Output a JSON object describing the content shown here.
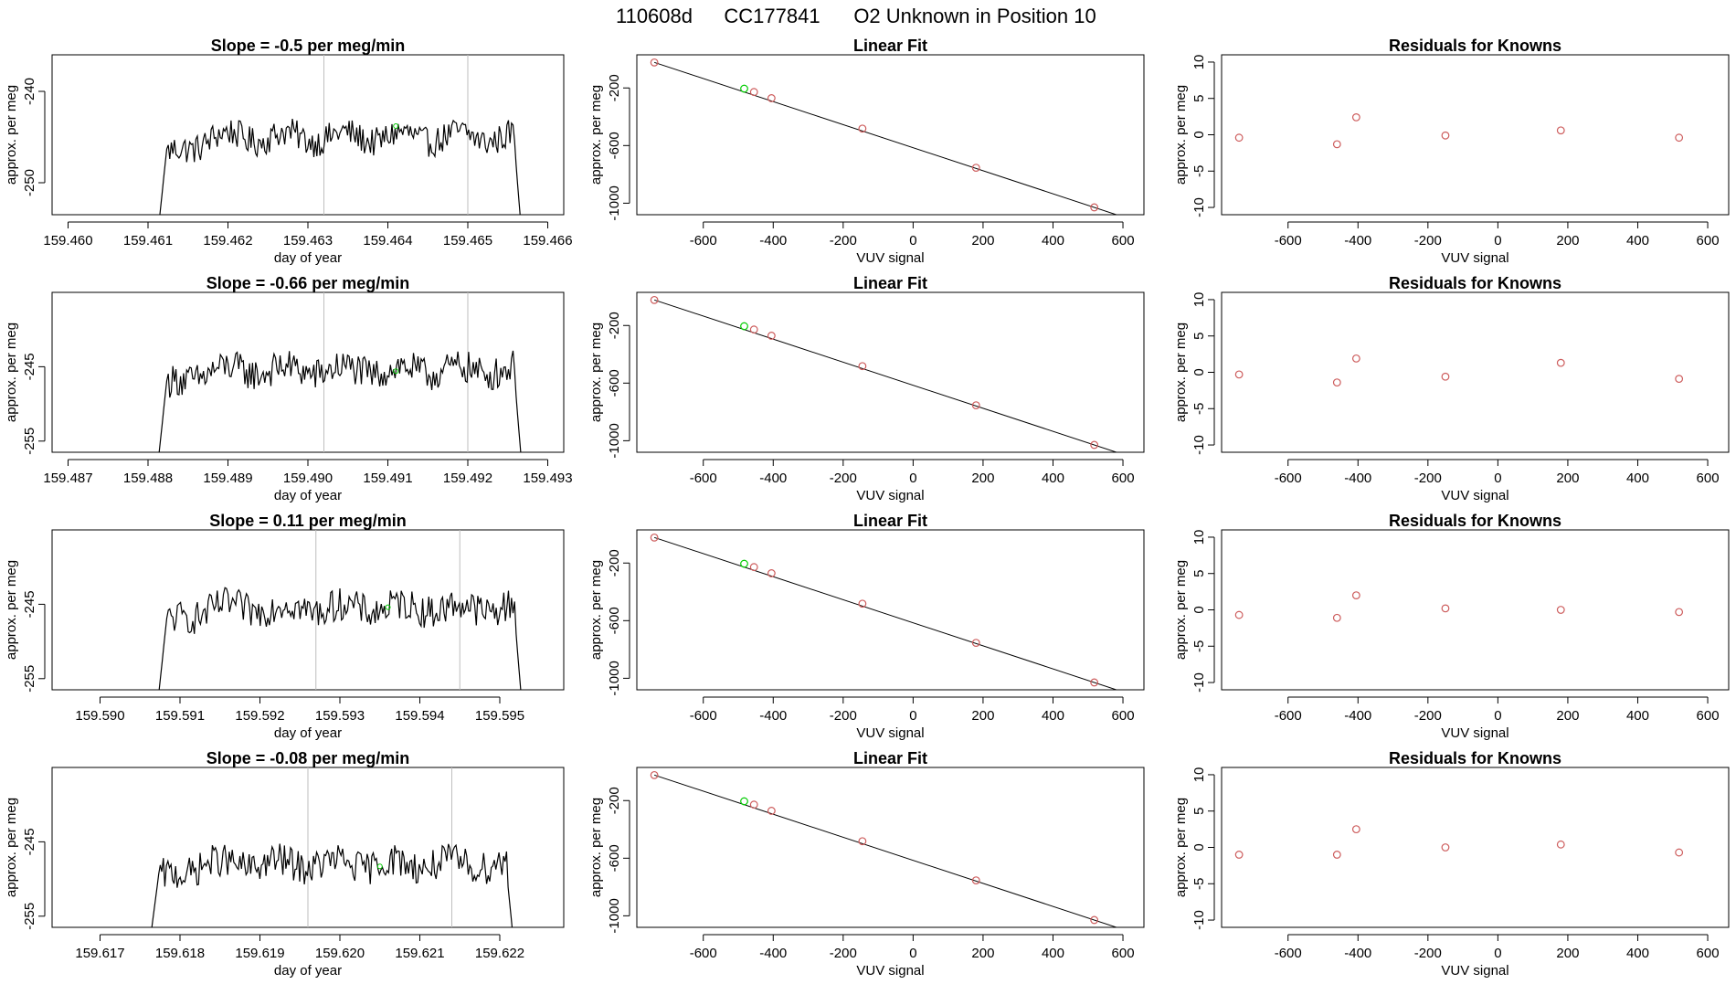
{
  "figure": {
    "title_parts": [
      "110608d",
      "CC177841",
      "O2 Unknown in Position  10"
    ]
  },
  "colors": {
    "line": "#000000",
    "vline": "#bebebe",
    "known_point": "#cd5c5c",
    "unknown_point": "#00cc00"
  },
  "chart_data": [
    {
      "type": "line",
      "row": 0,
      "col": 0,
      "title": "Slope =  -0.5  per meg/min",
      "xlabel": "day of year",
      "ylabel": "approx. per meg",
      "xlim": [
        159.4598,
        159.4662
      ],
      "ylim": [
        -253.5,
        -236
      ],
      "xticks": [
        159.46,
        159.461,
        159.462,
        159.463,
        159.464,
        159.465,
        159.466
      ],
      "xdecimals": 3,
      "yticks": [
        -240,
        -250
      ],
      "x_start": 159.4611,
      "x_end": 159.4657,
      "base": -245,
      "noise": 1.6,
      "vlines": [
        159.4632,
        159.465
      ],
      "unknown_point": {
        "x": 159.4641,
        "y": -243.8
      }
    },
    {
      "type": "line",
      "row": 1,
      "col": 0,
      "title": "Slope =  -0.66  per meg/min",
      "xlabel": "day of year",
      "ylabel": "approx. per meg",
      "xlim": [
        159.4868,
        159.4932
      ],
      "ylim": [
        -256.5,
        -235
      ],
      "xticks": [
        159.487,
        159.488,
        159.489,
        159.49,
        159.491,
        159.492,
        159.493
      ],
      "xdecimals": 3,
      "yticks": [
        -245,
        -255
      ],
      "x_start": 159.4881,
      "x_end": 159.4927,
      "base": -245.5,
      "noise": 2.2,
      "vlines": [
        159.4902,
        159.492
      ],
      "unknown_point": {
        "x": 159.4911,
        "y": -245.6
      }
    },
    {
      "type": "line",
      "row": 2,
      "col": 0,
      "title": "Slope =  0.11  per meg/min",
      "xlabel": "day of year",
      "ylabel": "approx. per meg",
      "xlim": [
        159.5894,
        159.5958
      ],
      "ylim": [
        -256.5,
        -235
      ],
      "xticks": [
        159.59,
        159.591,
        159.592,
        159.593,
        159.594,
        159.595
      ],
      "xdecimals": 3,
      "yticks": [
        -245,
        -255
      ],
      "x_start": 159.5907,
      "x_end": 159.5953,
      "base": -245.5,
      "noise": 2.2,
      "vlines": [
        159.5927,
        159.5945
      ],
      "unknown_point": {
        "x": 159.5936,
        "y": -245.4
      }
    },
    {
      "type": "line",
      "row": 3,
      "col": 0,
      "title": "Slope =  -0.08  per meg/min",
      "xlabel": "day of year",
      "ylabel": "approx. per meg",
      "xlim": [
        159.6164,
        159.6228
      ],
      "ylim": [
        -256.5,
        -235
      ],
      "xticks": [
        159.617,
        159.618,
        159.619,
        159.62,
        159.621,
        159.622
      ],
      "xdecimals": 3,
      "yticks": [
        -245,
        -255
      ],
      "x_start": 159.6176,
      "x_end": 159.6222,
      "base": -248,
      "noise": 2.2,
      "vlines": [
        159.6196,
        159.6214
      ],
      "unknown_point": {
        "x": 159.6205,
        "y": -248.3
      }
    },
    {
      "type": "scatter",
      "row": 0,
      "col": 1,
      "title": "Linear Fit",
      "xlabel": "VUV signal",
      "ylabel": "approx. per meg",
      "xlim": [
        -790,
        660
      ],
      "ylim": [
        -1080,
        30
      ],
      "xticks": [
        -600,
        -400,
        -200,
        0,
        200,
        400,
        600
      ],
      "xdecimals": 0,
      "yticks": [
        -200,
        -600,
        -1000
      ],
      "known_points": {
        "x": [
          -740,
          -455,
          -405,
          -145,
          180,
          518
        ],
        "y": [
          -23,
          -228,
          -271,
          -482,
          -754,
          -1029
        ]
      },
      "unknown_point": {
        "x": -483,
        "y": -205
      },
      "fit_line": {
        "x": [
          -740,
          640
        ],
        "y": [
          -22.6,
          -1127
        ]
      }
    },
    {
      "type": "scatter",
      "row": 1,
      "col": 1,
      "title": "Linear Fit",
      "xlabel": "VUV signal",
      "ylabel": "approx. per meg",
      "xlim": [
        -790,
        660
      ],
      "ylim": [
        -1080,
        30
      ],
      "xticks": [
        -600,
        -400,
        -200,
        0,
        200,
        400,
        600
      ],
      "xdecimals": 0,
      "yticks": [
        -200,
        -600,
        -1000
      ],
      "known_points": {
        "x": [
          -740,
          -455,
          -405,
          -145,
          180,
          518
        ],
        "y": [
          -23,
          -228,
          -271,
          -482,
          -754,
          -1029
        ]
      },
      "unknown_point": {
        "x": -483,
        "y": -205
      },
      "fit_line": {
        "x": [
          -740,
          640
        ],
        "y": [
          -22.6,
          -1127
        ]
      }
    },
    {
      "type": "scatter",
      "row": 2,
      "col": 1,
      "title": "Linear Fit",
      "xlabel": "VUV signal",
      "ylabel": "approx. per meg",
      "xlim": [
        -790,
        660
      ],
      "ylim": [
        -1080,
        30
      ],
      "xticks": [
        -600,
        -400,
        -200,
        0,
        200,
        400,
        600
      ],
      "xdecimals": 0,
      "yticks": [
        -200,
        -600,
        -1000
      ],
      "known_points": {
        "x": [
          -740,
          -455,
          -405,
          -145,
          180,
          518
        ],
        "y": [
          -23,
          -228,
          -271,
          -482,
          -754,
          -1029
        ]
      },
      "unknown_point": {
        "x": -483,
        "y": -205
      },
      "fit_line": {
        "x": [
          -740,
          640
        ],
        "y": [
          -22.6,
          -1127
        ]
      }
    },
    {
      "type": "scatter",
      "row": 3,
      "col": 1,
      "title": "Linear Fit",
      "xlabel": "VUV signal",
      "ylabel": "approx. per meg",
      "xlim": [
        -790,
        660
      ],
      "ylim": [
        -1080,
        30
      ],
      "xticks": [
        -600,
        -400,
        -200,
        0,
        200,
        400,
        600
      ],
      "xdecimals": 0,
      "yticks": [
        -200,
        -600,
        -1000
      ],
      "known_points": {
        "x": [
          -740,
          -455,
          -405,
          -145,
          180,
          518
        ],
        "y": [
          -23,
          -228,
          -271,
          -482,
          -754,
          -1029
        ]
      },
      "unknown_point": {
        "x": -483,
        "y": -205
      },
      "fit_line": {
        "x": [
          -740,
          640
        ],
        "y": [
          -22.6,
          -1127
        ]
      }
    },
    {
      "type": "scatter",
      "row": 0,
      "col": 2,
      "title": "Residuals for Knowns",
      "xlabel": "VUV signal",
      "ylabel": "approx. per meg",
      "xlim": [
        -790,
        660
      ],
      "ylim": [
        -11,
        11
      ],
      "xticks": [
        -600,
        -400,
        -200,
        0,
        200,
        400,
        600
      ],
      "xdecimals": 0,
      "yticks": [
        10,
        5,
        0,
        -5,
        -10
      ],
      "known_points": {
        "x": [
          -740,
          -460,
          -405,
          -150,
          180,
          518
        ],
        "y": [
          -0.4,
          -1.3,
          2.4,
          -0.1,
          0.6,
          -0.4
        ]
      }
    },
    {
      "type": "scatter",
      "row": 1,
      "col": 2,
      "title": "Residuals for Knowns",
      "xlabel": "VUV signal",
      "ylabel": "approx. per meg",
      "xlim": [
        -790,
        660
      ],
      "ylim": [
        -11,
        11
      ],
      "xticks": [
        -600,
        -400,
        -200,
        0,
        200,
        400,
        600
      ],
      "xdecimals": 0,
      "yticks": [
        10,
        5,
        0,
        -5,
        -10
      ],
      "known_points": {
        "x": [
          -740,
          -460,
          -405,
          -150,
          180,
          518
        ],
        "y": [
          -0.3,
          -1.4,
          1.9,
          -0.6,
          1.3,
          -0.9
        ]
      }
    },
    {
      "type": "scatter",
      "row": 2,
      "col": 2,
      "title": "Residuals for Knowns",
      "xlabel": "VUV signal",
      "ylabel": "approx. per meg",
      "xlim": [
        -790,
        660
      ],
      "ylim": [
        -11,
        11
      ],
      "xticks": [
        -600,
        -400,
        -200,
        0,
        200,
        400,
        600
      ],
      "xdecimals": 0,
      "yticks": [
        10,
        5,
        0,
        -5,
        -10
      ],
      "known_points": {
        "x": [
          -740,
          -460,
          -405,
          -150,
          180,
          518
        ],
        "y": [
          -0.7,
          -1.1,
          2.0,
          0.2,
          0.0,
          -0.3
        ]
      }
    },
    {
      "type": "scatter",
      "row": 3,
      "col": 2,
      "title": "Residuals for Knowns",
      "xlabel": "VUV signal",
      "ylabel": "approx. per meg",
      "xlim": [
        -790,
        660
      ],
      "ylim": [
        -11,
        11
      ],
      "xticks": [
        -600,
        -400,
        -200,
        0,
        200,
        400,
        600
      ],
      "xdecimals": 0,
      "yticks": [
        10,
        5,
        0,
        -5,
        -10
      ],
      "known_points": {
        "x": [
          -740,
          -460,
          -405,
          -150,
          180,
          518
        ],
        "y": [
          -1.0,
          -1.0,
          2.5,
          0.0,
          0.4,
          -0.7
        ]
      }
    }
  ]
}
